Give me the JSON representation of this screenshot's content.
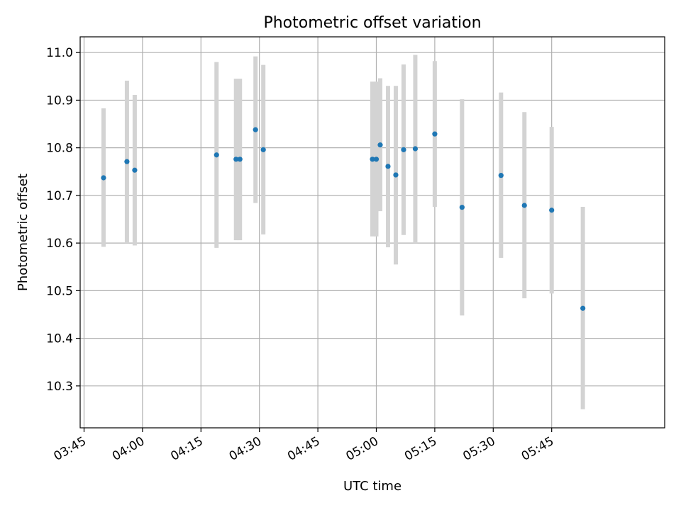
{
  "chart_data": {
    "type": "scatter",
    "title": "Photometric offset variation",
    "xlabel": "UTC time",
    "ylabel": "Photometric offset",
    "grid": true,
    "xlim": [
      "03:44",
      "06:14"
    ],
    "ylim": [
      10.212,
      11.033
    ],
    "x_ticks": [
      "03:45",
      "04:00",
      "04:15",
      "04:30",
      "04:45",
      "05:00",
      "05:15",
      "05:30",
      "05:45"
    ],
    "y_ticks": [
      10.3,
      10.4,
      10.5,
      10.6,
      10.7,
      10.8,
      10.9,
      11.0
    ],
    "y_tick_labels": [
      "10.3",
      "10.4",
      "10.5",
      "10.6",
      "10.7",
      "10.8",
      "10.9",
      "11.0"
    ],
    "point_color": "#1f77b4",
    "errorbar_color": "#d3d3d3",
    "points": [
      {
        "time": "03:50",
        "y": 10.737,
        "low": 10.592,
        "high": 10.883
      },
      {
        "time": "03:56",
        "y": 10.771,
        "low": 10.6,
        "high": 10.941
      },
      {
        "time": "03:58",
        "y": 10.753,
        "low": 10.595,
        "high": 10.911
      },
      {
        "time": "04:19",
        "y": 10.785,
        "low": 10.59,
        "high": 10.98
      },
      {
        "time": "04:24",
        "y": 10.776,
        "low": 10.606,
        "high": 10.945
      },
      {
        "time": "04:25",
        "y": 10.776,
        "low": 10.606,
        "high": 10.945
      },
      {
        "time": "04:29",
        "y": 10.838,
        "low": 10.684,
        "high": 10.992
      },
      {
        "time": "04:31",
        "y": 10.796,
        "low": 10.618,
        "high": 10.974
      },
      {
        "time": "04:59",
        "y": 10.776,
        "low": 10.614,
        "high": 10.939
      },
      {
        "time": "05:00",
        "y": 10.776,
        "low": 10.614,
        "high": 10.939
      },
      {
        "time": "05:01",
        "y": 10.806,
        "low": 10.667,
        "high": 10.946
      },
      {
        "time": "05:03",
        "y": 10.761,
        "low": 10.591,
        "high": 10.93
      },
      {
        "time": "05:05",
        "y": 10.743,
        "low": 10.555,
        "high": 10.93
      },
      {
        "time": "05:07",
        "y": 10.796,
        "low": 10.617,
        "high": 10.975
      },
      {
        "time": "05:10",
        "y": 10.798,
        "low": 10.6,
        "high": 10.995
      },
      {
        "time": "05:15",
        "y": 10.829,
        "low": 10.676,
        "high": 10.982
      },
      {
        "time": "05:22",
        "y": 10.675,
        "low": 10.448,
        "high": 10.902
      },
      {
        "time": "05:32",
        "y": 10.742,
        "low": 10.569,
        "high": 10.916
      },
      {
        "time": "05:38",
        "y": 10.679,
        "low": 10.484,
        "high": 10.875
      },
      {
        "time": "05:45",
        "y": 10.669,
        "low": 10.494,
        "high": 10.844
      },
      {
        "time": "05:53",
        "y": 10.463,
        "low": 10.251,
        "high": 10.676
      }
    ]
  }
}
